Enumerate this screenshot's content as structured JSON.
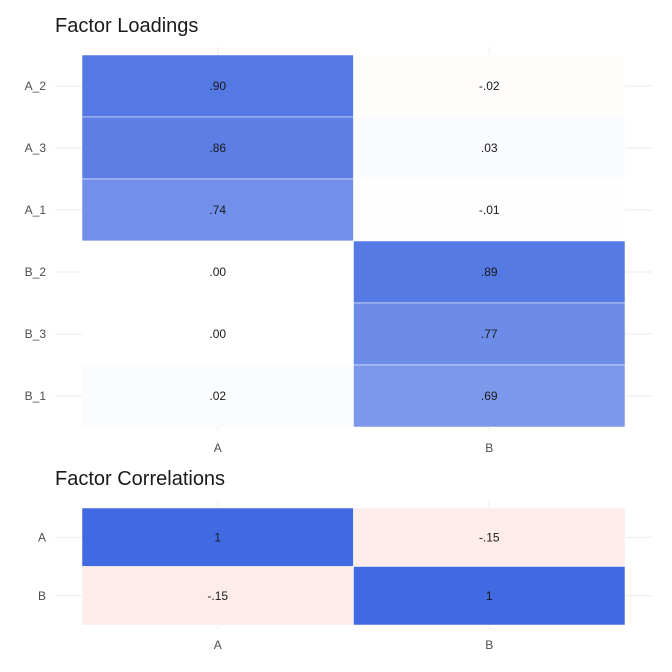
{
  "chart_data": [
    {
      "type": "heatmap",
      "title": "Factor Loadings",
      "rows": [
        "A_2",
        "A_3",
        "A_1",
        "B_2",
        "B_3",
        "B_1"
      ],
      "columns": [
        "A",
        "B"
      ],
      "values": [
        [
          0.9,
          -0.02
        ],
        [
          0.86,
          0.03
        ],
        [
          0.74,
          -0.01
        ],
        [
          0.0,
          0.89
        ],
        [
          0.0,
          0.77
        ],
        [
          0.02,
          0.69
        ]
      ],
      "labels": [
        [
          ".90",
          "-.02"
        ],
        [
          ".86",
          ".03"
        ],
        [
          ".74",
          "-.01"
        ],
        [
          ".00",
          ".89"
        ],
        [
          ".00",
          ".77"
        ],
        [
          ".02",
          ".69"
        ]
      ],
      "grid": true,
      "color_scale": {
        "low": "#fb8072",
        "mid": "#ffffff",
        "high": "#4169e1",
        "limits": [
          -1,
          1
        ]
      }
    },
    {
      "type": "heatmap",
      "title": "Factor Correlations",
      "rows": [
        "A",
        "B"
      ],
      "columns": [
        "A",
        "B"
      ],
      "values": [
        [
          1,
          -0.15
        ],
        [
          -0.15,
          1
        ]
      ],
      "labels": [
        [
          "1",
          "-.15"
        ],
        [
          "-.15",
          "1"
        ]
      ],
      "grid": true,
      "color_scale": {
        "low": "#fb8072",
        "mid": "#ffffff",
        "high": "#4169e1",
        "limits": [
          -1,
          1
        ]
      }
    }
  ]
}
